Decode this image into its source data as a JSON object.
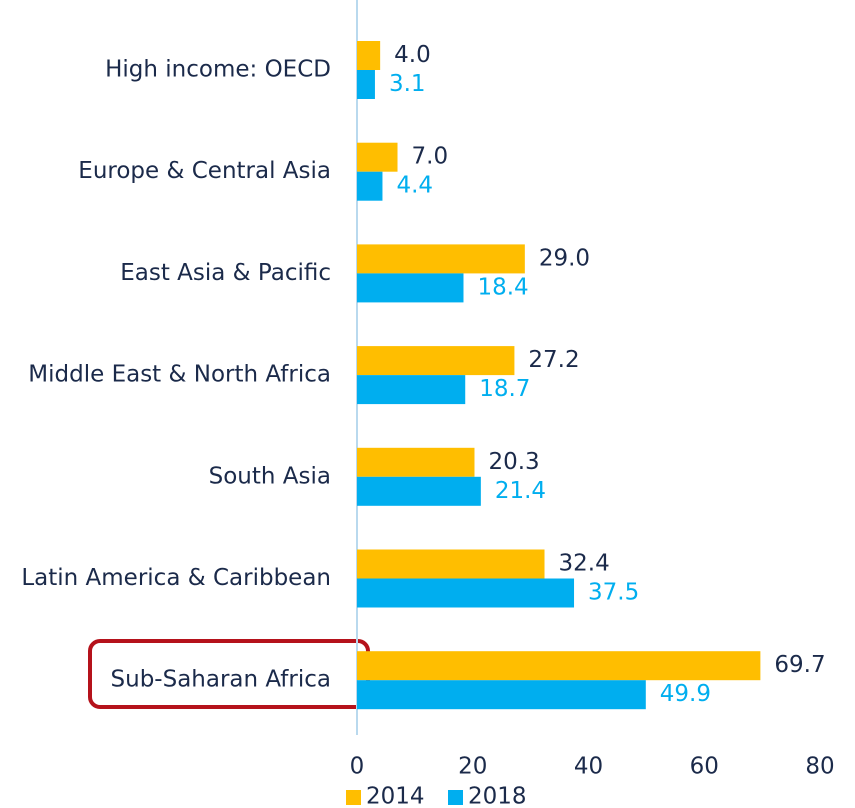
{
  "chart_data": {
    "type": "bar",
    "orientation": "horizontal",
    "categories": [
      "High income: OECD",
      "Europe & Central Asia",
      "East Asia & Pacific",
      "Middle East & North Africa",
      "South Asia",
      "Latin America & Caribbean",
      "Sub-Saharan Africa"
    ],
    "series": [
      {
        "name": "2014",
        "color": "#ffbe00",
        "values": [
          4.0,
          7.0,
          29.0,
          27.2,
          20.3,
          32.4,
          69.7
        ],
        "value_labels": [
          "4.0",
          "7.0",
          "29.0",
          "27.2",
          "20.3",
          "32.4",
          "69.7"
        ],
        "label_color": "#1b2a4a"
      },
      {
        "name": "2018",
        "color": "#00aeef",
        "values": [
          3.1,
          4.4,
          18.4,
          18.7,
          21.4,
          37.5,
          49.9
        ],
        "value_labels": [
          "3.1",
          "4.4",
          "18.4",
          "18.7",
          "21.4",
          "37.5",
          "49.9"
        ],
        "label_color": "#00aeef"
      }
    ],
    "xlim": [
      0,
      80
    ],
    "xticks": [
      0,
      20,
      40,
      60,
      80
    ],
    "grid": false,
    "legend": "bottom"
  }
}
